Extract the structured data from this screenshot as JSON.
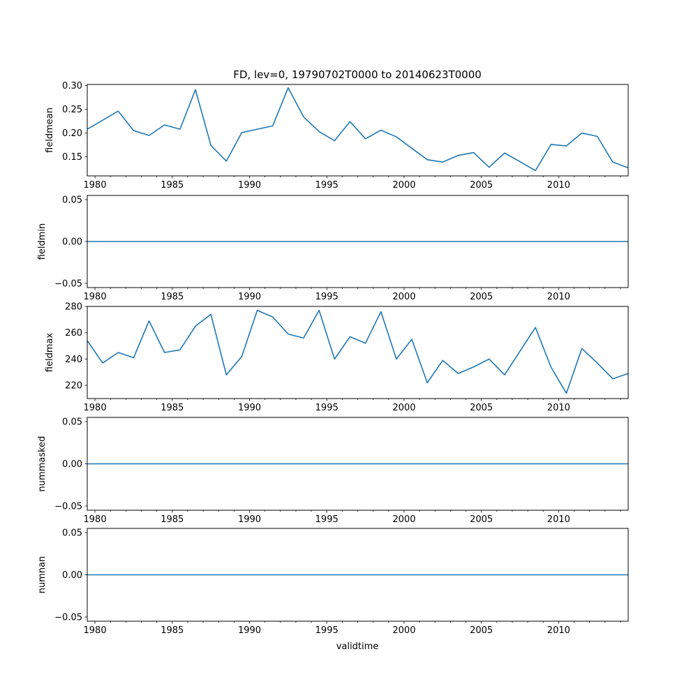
{
  "figure": {
    "title": "FD, lev=0, 19790702T0000 to 20140623T0000",
    "xlabel": "validtime"
  },
  "style": {
    "line_color": "#1f77b4",
    "axis_color": "#000000",
    "background": "#ffffff"
  },
  "chart_data": [
    {
      "type": "line",
      "ylabel": "fieldmean",
      "xlim": [
        1979.5,
        2014.5
      ],
      "ylim": [
        0.11,
        0.302
      ],
      "xticks": [
        1980,
        1985,
        1990,
        1995,
        2000,
        2005,
        2010
      ],
      "xtick_labels": [
        "1980",
        "1985",
        "1990",
        "1995",
        "2000",
        "2005",
        "2010"
      ],
      "yticks": [
        0.15,
        0.2,
        0.25,
        0.3
      ],
      "ytick_labels": [
        "0.15",
        "0.20",
        "0.25",
        "0.30"
      ],
      "x": [
        1979.5,
        1980.5,
        1981.5,
        1982.5,
        1983.5,
        1984.5,
        1985.5,
        1986.5,
        1987.5,
        1988.5,
        1989.5,
        1990.5,
        1991.5,
        1992.5,
        1993.5,
        1994.5,
        1995.5,
        1996.5,
        1997.5,
        1998.5,
        1999.5,
        2000.5,
        2001.5,
        2002.5,
        2003.5,
        2004.5,
        2005.5,
        2006.5,
        2007.5,
        2008.5,
        2009.5,
        2010.5,
        2011.5,
        2012.5,
        2013.5,
        2014.5
      ],
      "y": [
        0.208,
        0.227,
        0.246,
        0.205,
        0.195,
        0.217,
        0.208,
        0.291,
        0.174,
        0.141,
        0.201,
        0.208,
        0.215,
        0.295,
        0.234,
        0.203,
        0.184,
        0.224,
        0.188,
        0.206,
        0.192,
        0.168,
        0.144,
        0.139,
        0.153,
        0.159,
        0.128,
        0.158,
        0.14,
        0.121,
        0.176,
        0.173,
        0.2,
        0.193,
        0.139,
        0.127
      ]
    },
    {
      "type": "line",
      "ylabel": "fieldmin",
      "xlim": [
        1979.5,
        2014.5
      ],
      "ylim": [
        -0.055,
        0.055
      ],
      "xticks": [
        1980,
        1985,
        1990,
        1995,
        2000,
        2005,
        2010
      ],
      "xtick_labels": [
        "1980",
        "1985",
        "1990",
        "1995",
        "2000",
        "2005",
        "2010"
      ],
      "yticks": [
        -0.05,
        0.0,
        0.05
      ],
      "ytick_labels": [
        "−0.05",
        "0.00",
        "0.05"
      ],
      "x": [
        1979.5,
        2014.5
      ],
      "y": [
        0.0,
        0.0
      ]
    },
    {
      "type": "line",
      "ylabel": "fieldmax",
      "xlim": [
        1979.5,
        2014.5
      ],
      "ylim": [
        210.0,
        280.0
      ],
      "xticks": [
        1980,
        1985,
        1990,
        1995,
        2000,
        2005,
        2010
      ],
      "xtick_labels": [
        "1980",
        "1985",
        "1990",
        "1995",
        "2000",
        "2005",
        "2010"
      ],
      "yticks": [
        220,
        240,
        260,
        280
      ],
      "ytick_labels": [
        "220",
        "240",
        "260",
        "280"
      ],
      "x": [
        1979.5,
        1980.5,
        1981.5,
        1982.5,
        1983.5,
        1984.5,
        1985.5,
        1986.5,
        1987.5,
        1988.5,
        1989.5,
        1990.5,
        1991.5,
        1992.5,
        1993.5,
        1994.5,
        1995.5,
        1996.5,
        1997.5,
        1998.5,
        1999.5,
        2000.5,
        2001.5,
        2002.5,
        2003.5,
        2004.5,
        2005.5,
        2006.5,
        2007.5,
        2008.5,
        2009.5,
        2010.5,
        2011.5,
        2012.5,
        2013.5,
        2014.5
      ],
      "y": [
        254,
        237,
        245,
        241,
        269,
        245,
        247,
        265,
        274,
        228,
        242,
        277,
        272,
        259,
        256,
        277,
        240,
        257,
        252,
        276,
        240,
        255,
        222,
        239,
        229,
        234,
        240,
        228,
        246,
        264,
        234,
        214,
        248,
        237,
        225,
        229
      ]
    },
    {
      "type": "line",
      "ylabel": "nummasked",
      "xlim": [
        1979.5,
        2014.5
      ],
      "ylim": [
        -0.055,
        0.055
      ],
      "xticks": [
        1980,
        1985,
        1990,
        1995,
        2000,
        2005,
        2010
      ],
      "xtick_labels": [
        "1980",
        "1985",
        "1990",
        "1995",
        "2000",
        "2005",
        "2010"
      ],
      "yticks": [
        -0.05,
        0.0,
        0.05
      ],
      "ytick_labels": [
        "−0.05",
        "0.00",
        "0.05"
      ],
      "x": [
        1979.5,
        2014.5
      ],
      "y": [
        0.0,
        0.0
      ]
    },
    {
      "type": "line",
      "ylabel": "numnan",
      "xlim": [
        1979.5,
        2014.5
      ],
      "ylim": [
        -0.055,
        0.055
      ],
      "xticks": [
        1980,
        1985,
        1990,
        1995,
        2000,
        2005,
        2010
      ],
      "xtick_labels": [
        "1980",
        "1985",
        "1990",
        "1995",
        "2000",
        "2005",
        "2010"
      ],
      "yticks": [
        -0.05,
        0.0,
        0.05
      ],
      "ytick_labels": [
        "−0.05",
        "0.00",
        "0.05"
      ],
      "x": [
        1979.5,
        2014.5
      ],
      "y": [
        0.0,
        0.0
      ]
    }
  ]
}
